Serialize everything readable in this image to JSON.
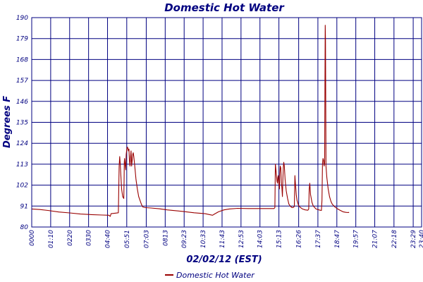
{
  "chart_data": {
    "type": "line",
    "title": "Domestic Hot Water",
    "xlabel": "02/02/12 (EST)",
    "ylabel": "Degrees F",
    "ylim": [
      80,
      190
    ],
    "yticks": [
      80,
      91,
      102,
      113,
      124,
      135,
      146,
      157,
      168,
      179,
      190
    ],
    "xlim": [
      0,
      1440
    ],
    "xticks": [
      {
        "t": 0,
        "label": "0000"
      },
      {
        "t": 70,
        "label": "01:10"
      },
      {
        "t": 140,
        "label": "0220"
      },
      {
        "t": 210,
        "label": "0330"
      },
      {
        "t": 280,
        "label": "04:40"
      },
      {
        "t": 351,
        "label": "05:51"
      },
      {
        "t": 423,
        "label": "07:03"
      },
      {
        "t": 493,
        "label": "0813"
      },
      {
        "t": 563,
        "label": "09:23"
      },
      {
        "t": 633,
        "label": "10:33"
      },
      {
        "t": 703,
        "label": "11:43"
      },
      {
        "t": 773,
        "label": "12:53"
      },
      {
        "t": 843,
        "label": "14:03"
      },
      {
        "t": 913,
        "label": "15:13"
      },
      {
        "t": 986,
        "label": "16:26"
      },
      {
        "t": 1057,
        "label": "17:37"
      },
      {
        "t": 1127,
        "label": "18:47"
      },
      {
        "t": 1197,
        "label": "19:57"
      },
      {
        "t": 1267,
        "label": "21:07"
      },
      {
        "t": 1338,
        "label": "22:18"
      },
      {
        "t": 1409,
        "label": "23:29"
      },
      {
        "t": 1440,
        "label": "23:40"
      }
    ],
    "grid": true,
    "legend_position": "bottom-center",
    "series": [
      {
        "name": "Domestic Hot Water",
        "color": "#990000",
        "points": [
          [
            0,
            89.5
          ],
          [
            30,
            89.2
          ],
          [
            60,
            88.7
          ],
          [
            100,
            87.9
          ],
          [
            140,
            87.4
          ],
          [
            180,
            86.8
          ],
          [
            220,
            86.5
          ],
          [
            260,
            86.3
          ],
          [
            285,
            86.2
          ],
          [
            290,
            85.6
          ],
          [
            293,
            87.0
          ],
          [
            310,
            87.3
          ],
          [
            320,
            87.5
          ],
          [
            323,
            112
          ],
          [
            325,
            117
          ],
          [
            327,
            113
          ],
          [
            329,
            108
          ],
          [
            332,
            100
          ],
          [
            336,
            96
          ],
          [
            340,
            95
          ],
          [
            341,
            104
          ],
          [
            342,
            114
          ],
          [
            343,
            116
          ],
          [
            345,
            113
          ],
          [
            347,
            110
          ],
          [
            349,
            118
          ],
          [
            351,
            121
          ],
          [
            354,
            122
          ],
          [
            357,
            120
          ],
          [
            359,
            121
          ],
          [
            361,
            115
          ],
          [
            363,
            112
          ],
          [
            365,
            117
          ],
          [
            367,
            120
          ],
          [
            369,
            112
          ],
          [
            371,
            115
          ],
          [
            373,
            118
          ],
          [
            375,
            119
          ],
          [
            377,
            117
          ],
          [
            380,
            113
          ],
          [
            385,
            105
          ],
          [
            390,
            100
          ],
          [
            395,
            96
          ],
          [
            400,
            94
          ],
          [
            405,
            92
          ],
          [
            410,
            90.5
          ],
          [
            420,
            90.2
          ],
          [
            440,
            90.0
          ],
          [
            470,
            89.6
          ],
          [
            500,
            89.0
          ],
          [
            550,
            88.3
          ],
          [
            600,
            87.5
          ],
          [
            640,
            87.0
          ],
          [
            668,
            86.2
          ],
          [
            675,
            86.8
          ],
          [
            690,
            88.0
          ],
          [
            710,
            89.0
          ],
          [
            730,
            89.5
          ],
          [
            760,
            89.8
          ],
          [
            800,
            89.7
          ],
          [
            850,
            89.7
          ],
          [
            895,
            89.7
          ],
          [
            898,
            90.2
          ],
          [
            900,
            113
          ],
          [
            902,
            110
          ],
          [
            904,
            107
          ],
          [
            906,
            104
          ],
          [
            908,
            103
          ],
          [
            909,
            106
          ],
          [
            911,
            107
          ],
          [
            913,
            103
          ],
          [
            915,
            100
          ],
          [
            916,
            108
          ],
          [
            918,
            112
          ],
          [
            920,
            111
          ],
          [
            922,
            103
          ],
          [
            924,
            101
          ],
          [
            926,
            96
          ],
          [
            927,
            102
          ],
          [
            929,
            111
          ],
          [
            931,
            114
          ],
          [
            933,
            112
          ],
          [
            936,
            105
          ],
          [
            940,
            99
          ],
          [
            945,
            95
          ],
          [
            950,
            92
          ],
          [
            955,
            91
          ],
          [
            960,
            90.3
          ],
          [
            965,
            90.2
          ],
          [
            970,
            90.8
          ],
          [
            972,
            107
          ],
          [
            974,
            103
          ],
          [
            977,
            97
          ],
          [
            980,
            94
          ],
          [
            985,
            91.5
          ],
          [
            990,
            90.5
          ],
          [
            1000,
            89.5
          ],
          [
            1010,
            89.0
          ],
          [
            1020,
            88.8
          ],
          [
            1023,
            89.5
          ],
          [
            1025,
            100
          ],
          [
            1027,
            103
          ],
          [
            1030,
            97
          ],
          [
            1035,
            93
          ],
          [
            1040,
            91
          ],
          [
            1050,
            89.5
          ],
          [
            1065,
            88.8
          ],
          [
            1070,
            88.7
          ],
          [
            1072,
            94
          ],
          [
            1074,
            113
          ],
          [
            1076,
            116
          ],
          [
            1078,
            115
          ],
          [
            1079,
            113
          ],
          [
            1080,
            112
          ],
          [
            1082,
            114
          ],
          [
            1083,
            152
          ],
          [
            1084,
            186
          ],
          [
            1085,
            178
          ],
          [
            1087,
            112
          ],
          [
            1090,
            106
          ],
          [
            1095,
            100
          ],
          [
            1100,
            96
          ],
          [
            1105,
            93.5
          ],
          [
            1110,
            92.0
          ],
          [
            1120,
            90.5
          ],
          [
            1130,
            89.5
          ],
          [
            1140,
            88.7
          ],
          [
            1150,
            88.0
          ],
          [
            1160,
            87.7
          ],
          [
            1170,
            87.6
          ],
          [
            1172,
            87.8
          ]
        ]
      }
    ]
  }
}
